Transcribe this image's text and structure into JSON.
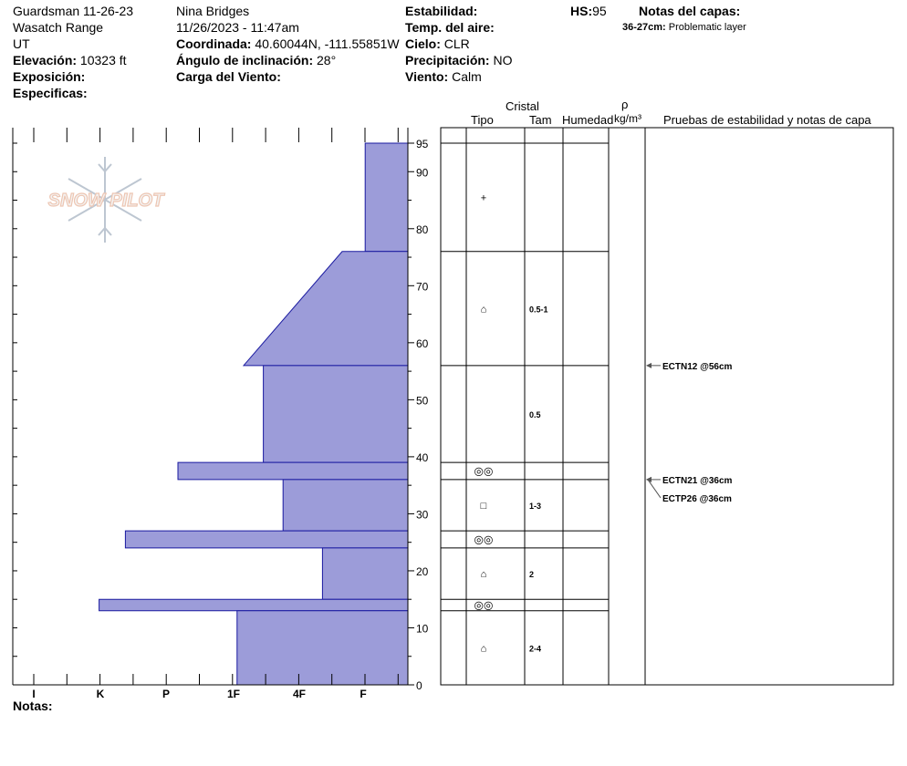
{
  "header": {
    "site": "Guardsman 11-26-23",
    "range": "Wasatch Range",
    "state": "UT",
    "elevation_label": "Elevación:",
    "elevation_value": "10323 ft",
    "aspect_label": "Exposición:",
    "specifics_label": "Especificas:",
    "observer": "Nina Bridges",
    "datetime": "11/26/2023 - 11:47am",
    "coord_label": "Coordinada:",
    "coord_value": "40.60044N, -111.55851W",
    "slope_label": "Ángulo de inclinación:",
    "slope_value": "28°",
    "wind_loading_label": "Carga del Viento:",
    "stability_label": "Estabilidad:",
    "air_temp_label": "Temp. del aire:",
    "sky_label": "Cielo:",
    "sky_value": "CLR",
    "precip_label": "Precipitación:",
    "precip_value": "NO",
    "wind_label": "Viento:",
    "wind_value": "Calm",
    "hs_label": "HS:",
    "hs_value": "95",
    "layer_notes_title": "Notas del capas:",
    "layer_note_depth": "36-27cm:",
    "layer_note_text": "Problematic layer",
    "notes_label": "Notas:"
  },
  "logo": {
    "text": "SNOW PILOT"
  },
  "columns": {
    "crystal": "Cristal",
    "type": "Tipo",
    "size": "Tam",
    "moisture": "Humedad",
    "rho": "ρ",
    "density_unit": "kg/m³",
    "tests_title": "Pruebas de estabilidad y notas de capa"
  },
  "colors": {
    "hardness_fill": "#9c9cd9",
    "hardness_stroke": "#1a1aa0",
    "line": "#000000"
  },
  "chart_data": {
    "type": "area",
    "title": "",
    "height_axis": {
      "min": 0,
      "max": 95,
      "ticks": [
        0,
        10,
        20,
        30,
        40,
        50,
        60,
        70,
        80,
        90,
        95
      ]
    },
    "hardness_axis": {
      "labels": [
        "I",
        "K",
        "P",
        "1F",
        "4F",
        "F"
      ]
    },
    "layers": [
      {
        "bottom": 76,
        "top": 95,
        "hardness_bottom": 0.65,
        "hardness_top": 0.65,
        "symbol": "+",
        "size": ""
      },
      {
        "bottom": 56,
        "top": 76,
        "hardness_bottom": 2.5,
        "hardness_top": 1.0,
        "symbol": "⌂",
        "size": "0.5-1"
      },
      {
        "bottom": 39,
        "top": 56,
        "hardness_bottom": 2.2,
        "hardness_top": 2.2,
        "symbol": "",
        "size": "0.5"
      },
      {
        "bottom": 36,
        "top": 39,
        "hardness_bottom": 3.5,
        "hardness_top": 3.5,
        "symbol": "◎◎",
        "size": ""
      },
      {
        "bottom": 27,
        "top": 36,
        "hardness_bottom": 1.9,
        "hardness_top": 1.9,
        "symbol": "□",
        "size": "1-3"
      },
      {
        "bottom": 24,
        "top": 27,
        "hardness_bottom": 4.3,
        "hardness_top": 4.3,
        "symbol": "◎◎",
        "size": ""
      },
      {
        "bottom": 15,
        "top": 24,
        "hardness_bottom": 1.3,
        "hardness_top": 1.3,
        "symbol": "⌂",
        "size": "2"
      },
      {
        "bottom": 13,
        "top": 15,
        "hardness_bottom": 4.7,
        "hardness_top": 4.7,
        "symbol": "◎◎",
        "size": ""
      },
      {
        "bottom": 0,
        "top": 13,
        "hardness_bottom": 2.6,
        "hardness_top": 2.6,
        "symbol": "⌂",
        "size": "2-4"
      }
    ],
    "tests": [
      {
        "label": "ECTN12 @56cm",
        "depth": 56
      },
      {
        "label": "ECTN21 @36cm",
        "depth": 36
      },
      {
        "label": "ECTP26 @36cm",
        "depth": 36
      }
    ]
  }
}
